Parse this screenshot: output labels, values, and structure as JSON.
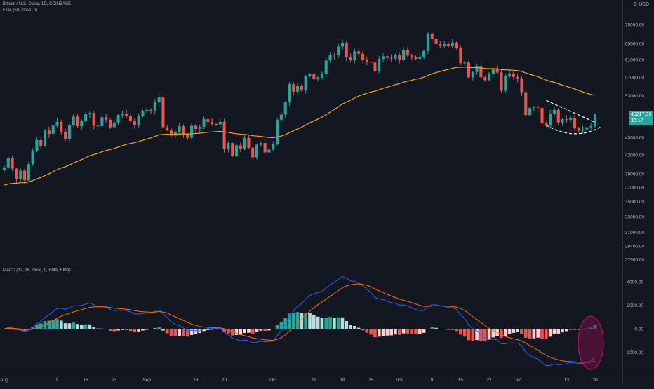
{
  "header": {
    "symbol_line": "Bitcoin / U.S. Dollar, 1D, COINBASE",
    "ema_legend": "EMA (50, close, 0)",
    "macd_legend": "MACD (12, 26, close, 9, EMA, EMA)",
    "currency": "USD",
    "settings_icon": "gear-icon"
  },
  "price_badge": {
    "price": "49217.33",
    "countdown": "30:17",
    "color": "#26a69a"
  },
  "colors": {
    "up": "#26a69a",
    "down": "#ef5350",
    "ema": "#f7a21b",
    "macd": "#2962ff",
    "signal": "#ff6d00",
    "hist_light_up": "#b2dfdb",
    "hist_light_down": "#ffcdd2"
  },
  "chart_data": [
    {
      "type": "candlestick",
      "title": "Bitcoin / U.S. Dollar, 1D, COINBASE",
      "y_scale": "log",
      "y_ticks": [
        27900,
        29400,
        31000,
        33000,
        35000,
        37000,
        39000,
        42000,
        45000,
        49217.33,
        53000,
        57000,
        61000,
        65000,
        70000
      ],
      "y_tick_labels": [
        "27900.00",
        "29400.00",
        "31000.00",
        "33000.00",
        "35000.00",
        "37000.00",
        "39000.00",
        "42000.00",
        "45000.00",
        "49217.33",
        "53000.00",
        "57000.00",
        "61000.00",
        "65000.00",
        "70000.00"
      ],
      "x_tick_labels": [
        "Aug",
        "9",
        "16",
        "23",
        "Sep",
        "13",
        "20",
        "Oct",
        "11",
        "18",
        "25",
        "Nov",
        "8",
        "15",
        "22",
        "Dec",
        "13",
        "20"
      ],
      "x_tick_indices": [
        0,
        13,
        20,
        27,
        35,
        47,
        54,
        66,
        76,
        83,
        90,
        97,
        105,
        112,
        119,
        126,
        138,
        145
      ],
      "start_date": "2021-07-29",
      "closes": [
        40000,
        41500,
        39800,
        38200,
        39500,
        38000,
        40500,
        42700,
        44500,
        43500,
        46200,
        45600,
        47100,
        47800,
        46000,
        44700,
        47200,
        48800,
        47000,
        48000,
        49300,
        49500,
        47100,
        47000,
        48700,
        48200,
        46800,
        47700,
        49100,
        49300,
        48900,
        48000,
        47200,
        49000,
        49800,
        50100,
        50000,
        51600,
        52600,
        46800,
        46300,
        45300,
        46000,
        47000,
        45600,
        44900,
        47100,
        46500,
        46900,
        48300,
        47800,
        47400,
        47300,
        47800,
        43000,
        44000,
        41800,
        43600,
        43000,
        44900,
        43200,
        41600,
        43700,
        44000,
        42400,
        42900,
        43800,
        48200,
        49200,
        51600,
        55400,
        53800,
        55000,
        54200,
        57200,
        57600,
        56600,
        56900,
        57700,
        60800,
        62200,
        62000,
        64200,
        65100,
        61600,
        60900,
        63000,
        62400,
        61000,
        60500,
        60300,
        58300,
        61200,
        61800,
        61400,
        61300,
        62200,
        61000,
        63300,
        62000,
        61500,
        61200,
        61700,
        63100,
        67600,
        66200,
        64800,
        64300,
        64800,
        64400,
        65200,
        63900,
        60200,
        60300,
        56900,
        58100,
        59500,
        56900,
        56300,
        57600,
        58800,
        58000,
        54000,
        57300,
        57800,
        57000,
        56700,
        53700,
        49100,
        50500,
        50600,
        50500,
        47500,
        47100,
        49400,
        50100,
        47700,
        48300,
        48200,
        48600,
        46600,
        46200,
        46400,
        46800,
        47000,
        49217
      ]
    },
    {
      "type": "macd",
      "title": "MACD (12, 26, close, 9, EMA, EMA)",
      "y_ticks": [
        -2000,
        0,
        2000,
        4000
      ],
      "y_tick_labels": [
        "-2000.00",
        "0.00",
        "2000.00",
        "4000.00"
      ]
    }
  ]
}
